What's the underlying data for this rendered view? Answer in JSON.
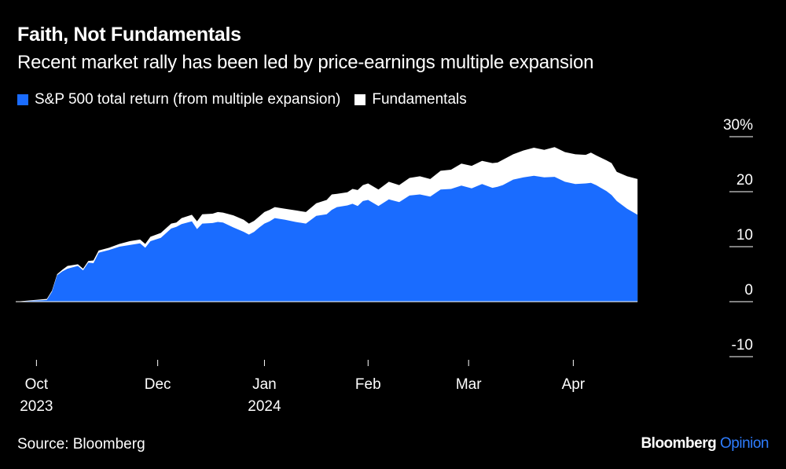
{
  "header": {
    "title": "Faith, Not Fundamentals",
    "subtitle": "Recent market rally has been led by price-earnings multiple expansion"
  },
  "footer": {
    "source": "Source: Bloomberg",
    "brand": "Bloomberg",
    "brand_suffix": "Opinion"
  },
  "colors": {
    "multiple": "#1a6cff",
    "fundamentals": "#ffffff",
    "background": "#000000",
    "brand_accent": "#2e7dff"
  },
  "chart_data": {
    "type": "area",
    "title": "Faith, Not Fundamentals",
    "subtitle": "Recent market rally has been led by price-earnings multiple expansion",
    "ylim": [
      -10,
      30
    ],
    "xlim": [
      -0.2,
      6.55
    ],
    "y_ticks": [
      {
        "value": 30,
        "label": "30%"
      },
      {
        "value": 20,
        "label": "20"
      },
      {
        "value": 10,
        "label": "10"
      },
      {
        "value": 0,
        "label": "0"
      },
      {
        "value": -10,
        "label": "-10"
      }
    ],
    "x_ticks": [
      {
        "value": 0,
        "label": "Oct",
        "sublabel": "2023"
      },
      {
        "value": 1.17,
        "label": "Dec",
        "sublabel": ""
      },
      {
        "value": 2.2,
        "label": "Jan",
        "sublabel": "2024"
      },
      {
        "value": 3.2,
        "label": "Feb",
        "sublabel": ""
      },
      {
        "value": 4.17,
        "label": "Mar",
        "sublabel": ""
      },
      {
        "value": 5.18,
        "label": "Apr",
        "sublabel": ""
      }
    ],
    "legend": [
      {
        "key": "multiple",
        "label": "S&P 500 total return (from multiple expansion)"
      },
      {
        "key": "fundamentals",
        "label": "Fundamentals"
      }
    ],
    "x": [
      -0.2,
      0.1,
      0.15,
      0.2,
      0.25,
      0.3,
      0.4,
      0.45,
      0.5,
      0.55,
      0.6,
      0.7,
      0.8,
      0.9,
      1.0,
      1.05,
      1.1,
      1.2,
      1.3,
      1.35,
      1.4,
      1.5,
      1.55,
      1.6,
      1.7,
      1.75,
      1.8,
      1.9,
      2.0,
      2.05,
      2.1,
      2.15,
      2.2,
      2.25,
      2.3,
      2.4,
      2.5,
      2.6,
      2.7,
      2.8,
      2.85,
      2.9,
      3.0,
      3.05,
      3.1,
      3.15,
      3.2,
      3.3,
      3.4,
      3.5,
      3.6,
      3.7,
      3.8,
      3.9,
      4.0,
      4.1,
      4.2,
      4.3,
      4.4,
      4.45,
      4.5,
      4.6,
      4.7,
      4.8,
      4.9,
      5.0,
      5.1,
      5.2,
      5.3,
      5.35,
      5.4,
      5.5,
      5.55,
      5.6,
      5.7,
      5.8
    ],
    "series": [
      {
        "name": "Fundamentals",
        "values": [
          0,
          0.5,
          2,
          5,
          5.8,
          6.5,
          6.8,
          6.0,
          7.4,
          7.5,
          9.3,
          9.8,
          10.5,
          11.0,
          11.3,
          10.5,
          11.8,
          12.5,
          14.2,
          14.4,
          15.2,
          15.8,
          14.6,
          15.9,
          16.0,
          16.3,
          16.2,
          15.7,
          14.9,
          14.2,
          14.7,
          15.5,
          16.3,
          16.7,
          17.2,
          16.9,
          16.6,
          16.3,
          17.9,
          18.5,
          19.5,
          19.6,
          19.9,
          20.5,
          20.3,
          21.2,
          21.5,
          20.4,
          21.8,
          21.2,
          22.5,
          22.8,
          22.3,
          23.8,
          24.0,
          25.1,
          24.7,
          25.6,
          25.2,
          25.3,
          25.8,
          26.8,
          27.5,
          28.0,
          27.6,
          28.1,
          27.2,
          26.8,
          26.7,
          27.1,
          26.6,
          25.7,
          25.2,
          23.6,
          22.8,
          22.3
        ]
      },
      {
        "name": "S&P 500 total return (from multiple expansion)",
        "values": [
          0,
          0.3,
          1.8,
          4.8,
          5.5,
          6.0,
          6.5,
          5.7,
          7.1,
          7.0,
          8.9,
          9.4,
          10.0,
          10.3,
          10.6,
          9.8,
          11.0,
          11.6,
          13.3,
          13.6,
          14.1,
          14.6,
          13.2,
          14.2,
          14.3,
          14.5,
          14.4,
          13.5,
          12.7,
          12.2,
          12.7,
          13.5,
          14.2,
          14.6,
          15.2,
          14.9,
          14.5,
          14.2,
          15.6,
          15.9,
          16.7,
          17.2,
          17.5,
          17.8,
          17.4,
          18.3,
          18.5,
          17.4,
          18.6,
          18.1,
          19.3,
          19.5,
          19.1,
          20.4,
          20.5,
          21.1,
          20.6,
          21.4,
          20.7,
          20.9,
          21.2,
          22.2,
          22.6,
          22.9,
          22.6,
          22.7,
          21.8,
          21.4,
          21.5,
          21.6,
          21.2,
          20.1,
          19.4,
          18.3,
          16.9,
          15.8
        ]
      }
    ]
  }
}
